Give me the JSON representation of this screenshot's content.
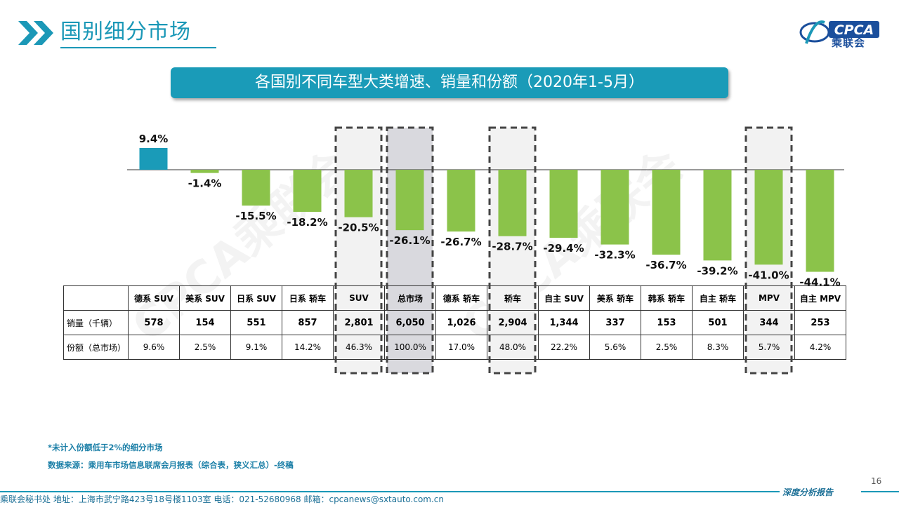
{
  "header": {
    "title": "国别细分市场",
    "logo_text": "乘联会",
    "logo_brand": "CPCA"
  },
  "banner": {
    "text": "各国别不同车型大类增速、销量和份额（2020年1-5月）"
  },
  "chart_data": {
    "type": "bar",
    "categories": [
      "德系 SUV",
      "美系 SUV",
      "日系 SUV",
      "日系 轿车",
      "SUV",
      "总市场",
      "德系 轿车",
      "轿车",
      "自主 SUV",
      "美系 轿车",
      "韩系 轿车",
      "自主 轿车",
      "MPV",
      "自主 MPV"
    ],
    "values": [
      9.4,
      -1.4,
      -15.5,
      -18.2,
      -20.5,
      -26.1,
      -26.7,
      -28.7,
      -29.4,
      -32.3,
      -36.7,
      -39.2,
      -41.0,
      -44.1
    ],
    "value_labels": [
      "9.4%",
      "-1.4%",
      "-15.5%",
      "-18.2%",
      "-20.5%",
      "-26.1%",
      "-26.7%",
      "-28.7%",
      "-29.4%",
      "-32.3%",
      "-36.7%",
      "-39.2%",
      "-41.0%",
      "-44.1%"
    ],
    "highlighted": [
      "SUV",
      "总市场",
      "轿车",
      "MPV"
    ],
    "colors": {
      "positive": "#1a9bb8",
      "negative": "#8bc34a",
      "highlight_box": "#f2f2f2",
      "total_box": "#d9d9de"
    }
  },
  "table": {
    "row_labels": [
      "销量（千辆）",
      "份额（总市场）"
    ],
    "sales": [
      "578",
      "154",
      "551",
      "857",
      "2,801",
      "6,050",
      "1,026",
      "2,904",
      "1,344",
      "337",
      "153",
      "501",
      "344",
      "253"
    ],
    "shares": [
      "9.6%",
      "2.5%",
      "9.1%",
      "14.2%",
      "46.3%",
      "100.0%",
      "17.0%",
      "48.0%",
      "22.2%",
      "5.6%",
      "2.5%",
      "8.3%",
      "5.7%",
      "4.2%"
    ]
  },
  "notes": {
    "note1": "*未计入份额低于2%的细分市场",
    "note2": "数据来源：乘用车市场信息联席会月报表（综合表，狭义汇总）-终稿"
  },
  "footer": {
    "address": "乘联会秘书处   地址：上海市武宁路423号18号楼1103室   电话：021-52680968   邮箱：cpcanews@sxtauto.com.cn",
    "right_label": "深度分析报告",
    "page_number": "16"
  },
  "watermark": {
    "text": "CPCA乘联会"
  }
}
